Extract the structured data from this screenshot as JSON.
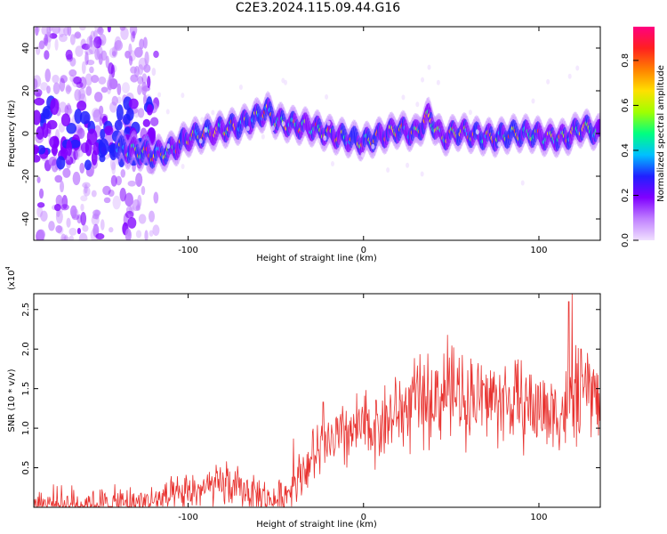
{
  "title": "C2E3.2024.115.09.44.G16",
  "colors": {
    "snr_line": "#e8322f",
    "axes": "#000000",
    "colormap": [
      "#f0e0ff",
      "#c080ff",
      "#8000ff",
      "#2020ff",
      "#00c0ff",
      "#00ff80",
      "#a0ff00",
      "#ffe000",
      "#ff8000",
      "#ff2020",
      "#ff0080"
    ]
  },
  "chart_data": [
    {
      "type": "heatmap",
      "xlabel": "Height of straight line (km)",
      "ylabel": "Frequency (Hz)",
      "xlim": [
        -188,
        135
      ],
      "ylim": [
        -50,
        50
      ],
      "xticks": [
        -100,
        0,
        100
      ],
      "yticks": [
        -40,
        -20,
        0,
        20,
        40
      ],
      "colorbar": {
        "label": "Normalized spectral amplitude",
        "range": [
          0,
          0.95
        ],
        "ticks": [
          0.0,
          0.2,
          0.4,
          0.6,
          0.8
        ]
      },
      "ridge": {
        "description": "dominant frequency ridge",
        "x": [
          -140,
          -130,
          -120,
          -110,
          -100,
          -90,
          -80,
          -70,
          -60,
          -55,
          -50,
          -40,
          -30,
          -20,
          -10,
          0,
          10,
          20,
          30,
          37,
          45,
          55,
          65,
          75,
          85,
          95,
          105,
          115,
          125,
          135
        ],
        "y": [
          -7,
          -8,
          -10,
          -8,
          -2,
          0,
          2,
          4,
          8,
          11,
          6,
          4,
          3,
          0,
          -2,
          -4,
          -1,
          2,
          0,
          8,
          -2,
          1,
          -1,
          -2,
          0,
          0,
          -2,
          -2,
          3,
          0
        ]
      }
    },
    {
      "type": "line",
      "xlabel": "Height of straight line (km)",
      "ylabel": "SNR (10 * v/v)",
      "y_multiplier": "(x10^4)",
      "y_multiplier_base": "(x10",
      "y_multiplier_exp": "4",
      "y_multiplier_close": ")",
      "xlim": [
        -188,
        135
      ],
      "ylim": [
        0,
        2.7
      ],
      "xticks": [
        -100,
        0,
        100
      ],
      "yticks": [
        0.5,
        1.0,
        1.5,
        2.0,
        2.5
      ],
      "ytick_labels": [
        "0.5",
        "1.0",
        "1.5",
        "2.0",
        "2.5"
      ],
      "series": [
        {
          "trend_x": [
            -188,
            -150,
            -130,
            -120,
            -105,
            -95,
            -85,
            -78,
            -72,
            -65,
            -60,
            -55,
            -50,
            -45,
            -40,
            -35,
            -30,
            -25,
            -20,
            -10,
            0,
            10,
            20,
            30,
            40,
            50,
            60,
            70,
            80,
            90,
            100,
            110,
            115,
            120,
            125,
            130,
            135
          ],
          "trend_y": [
            0.05,
            0.04,
            0.05,
            0.08,
            0.14,
            0.22,
            0.25,
            0.28,
            0.24,
            0.2,
            0.16,
            0.1,
            0.08,
            0.14,
            0.3,
            0.45,
            0.6,
            0.7,
            0.8,
            0.9,
            1.0,
            1.05,
            1.2,
            1.3,
            1.4,
            1.42,
            1.4,
            1.38,
            1.35,
            1.3,
            1.25,
            1.2,
            1.22,
            1.3,
            1.4,
            1.5,
            1.3
          ],
          "peaks_x": [
            -78,
            -48,
            -40,
            -23,
            -10,
            28,
            48,
            54,
            117,
            119,
            121,
            124,
            128
          ],
          "peaks_y": [
            0.58,
            0.35,
            0.87,
            1.33,
            1.22,
            1.65,
            2.18,
            1.55,
            2.6,
            2.7,
            2.05,
            2.0,
            1.75
          ]
        }
      ]
    }
  ]
}
